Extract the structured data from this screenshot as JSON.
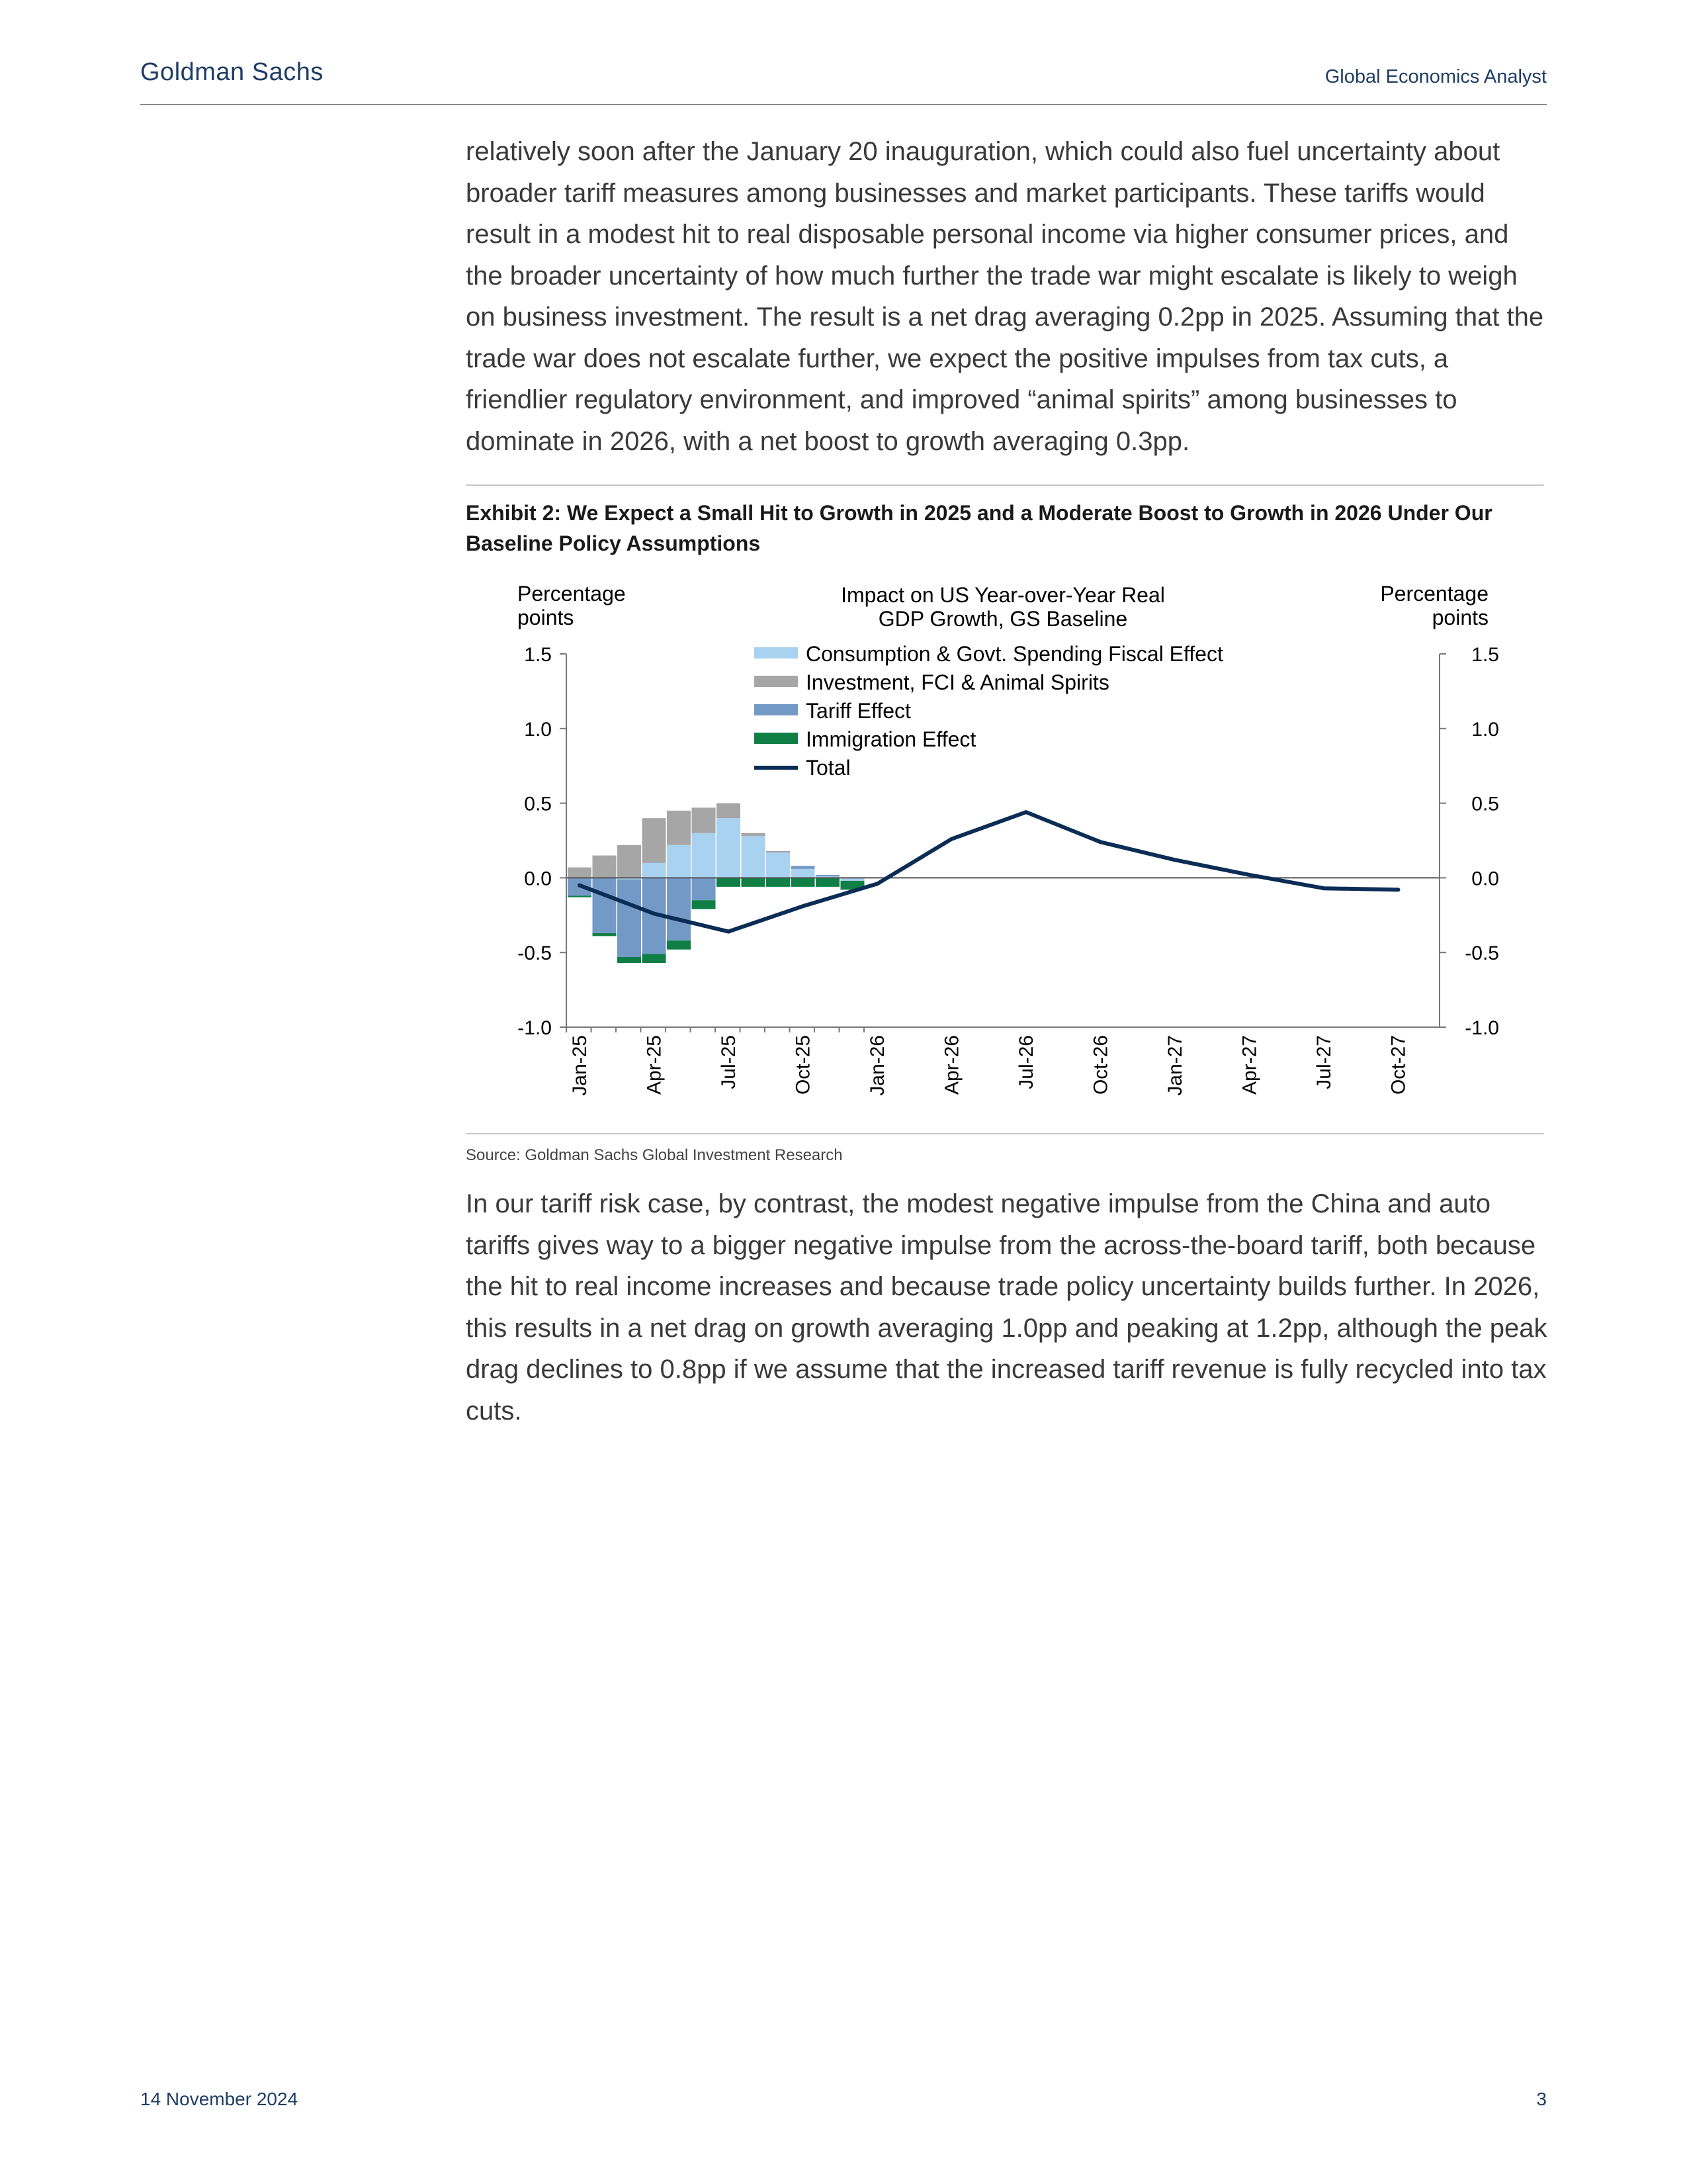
{
  "header": {
    "brand": "Goldman Sachs",
    "publication": "Global Economics Analyst"
  },
  "body": {
    "para1": "relatively soon after the January 20 inauguration, which could also fuel uncertainty about broader tariff measures among businesses and market participants.  These tariffs would result in a modest hit to real disposable personal income via higher consumer prices, and the broader uncertainty of how much further the trade war might escalate is likely to weigh on business investment.  The result is a net drag averaging 0.2pp in 2025. Assuming that the trade war does not escalate further, we expect the positive impulses from tax cuts, a friendlier regulatory environment, and improved “animal spirits” among businesses to dominate in 2026, with a net boost to growth averaging 0.3pp.",
    "para2": "In our tariff risk case, by contrast, the modest negative impulse from the China and auto tariffs gives way to a bigger negative impulse from the across-the-board tariff, both because the hit to real income increases and because trade policy uncertainty builds further.  In 2026, this results in a net drag on growth averaging 1.0pp and peaking at 1.2pp, although the peak drag declines to 0.8pp if we assume that the increased tariff revenue is fully recycled into tax cuts."
  },
  "exhibit": {
    "title": "Exhibit 2: We Expect a Small Hit to Growth in 2025 and a Moderate Boost to Growth in 2026 Under Our Baseline Policy Assumptions",
    "source": "Source: Goldman Sachs Global Investment Research"
  },
  "chart_data": {
    "type": "bar",
    "stacked": true,
    "title_lines": [
      "Impact on US Year-over-Year Real",
      "GDP Growth, GS Baseline"
    ],
    "ylabel_left_lines": [
      "Percentage",
      "points"
    ],
    "ylabel_right_lines": [
      "Percentage",
      "points"
    ],
    "ylim": [
      -1.0,
      1.5
    ],
    "yticks": [
      1.5,
      1.0,
      0.5,
      0.0,
      -0.5,
      -1.0
    ],
    "ytick_labels": [
      "1.5",
      "1.0",
      "0.5",
      "0.0",
      "-0.5",
      "-1.0"
    ],
    "legend_position": "top-center",
    "grid": false,
    "x_labeled": [
      "Jan-25",
      "Apr-25",
      "Jul-25",
      "Oct-25",
      "Jan-26",
      "Apr-26",
      "Jul-26",
      "Oct-26",
      "Jan-27",
      "Apr-27",
      "Jul-27",
      "Oct-27"
    ],
    "series": [
      {
        "name": "Consumption & Govt. Spending Fiscal Effect",
        "kind": "bar",
        "color": "#a9d1f0",
        "values": [
          0.0,
          0.0,
          -0.01,
          0.1,
          0.22,
          0.3,
          0.4,
          0.28,
          0.17,
          0.06,
          0.01,
          -0.02
        ]
      },
      {
        "name": "Investment, FCI & Animal Spirits",
        "kind": "bar",
        "color": "#a6a6a6",
        "values": [
          0.07,
          0.15,
          0.22,
          0.3,
          0.23,
          0.17,
          0.1,
          0.02,
          0.01,
          0.0,
          0.0,
          0.0
        ]
      },
      {
        "name": "Tariff Effect",
        "kind": "bar",
        "color": "#7399c6",
        "values": [
          -0.12,
          -0.37,
          -0.52,
          -0.51,
          -0.42,
          -0.15,
          0.0,
          0.0,
          0.0,
          0.02,
          0.01,
          0.0
        ]
      },
      {
        "name": "Immigration Effect",
        "kind": "bar",
        "color": "#0f7f46",
        "values": [
          -0.01,
          -0.02,
          -0.04,
          -0.06,
          -0.06,
          -0.06,
          -0.06,
          -0.06,
          -0.06,
          -0.06,
          -0.06,
          -0.06
        ]
      },
      {
        "name": "Total",
        "kind": "line",
        "color": "#0b2d55",
        "values": [
          -0.05,
          -0.24,
          -0.36,
          -0.19,
          -0.04,
          0.26,
          0.44,
          0.24,
          0.12,
          0.02,
          -0.07,
          -0.08
        ]
      }
    ]
  },
  "footer": {
    "date": "14 November 2024",
    "page": "3"
  }
}
